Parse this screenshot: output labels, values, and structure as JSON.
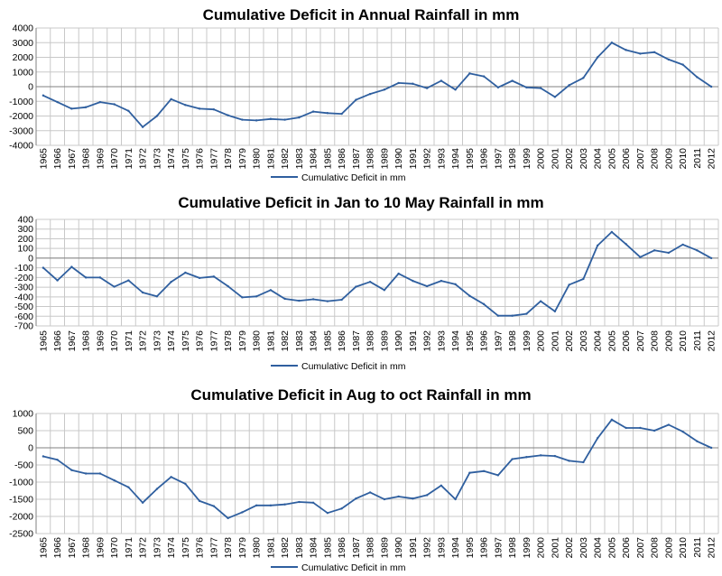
{
  "colors": {
    "series": "#2F5F9F"
  },
  "chart_data": [
    {
      "type": "line",
      "title": "Cumulative Deficit in Annual Rainfall in mm",
      "xlabel": "",
      "ylabel": "",
      "ylim": [
        -4000,
        4000
      ],
      "ytick_step": 1000,
      "grid": true,
      "legend_position": "bottom-center",
      "x": [
        "1965",
        "1966",
        "1967",
        "1968",
        "1969",
        "1970",
        "1971",
        "1972",
        "1973",
        "1974",
        "1975",
        "1976",
        "1977",
        "1978",
        "1979",
        "1980",
        "1981",
        "1982",
        "1983",
        "1984",
        "1985",
        "1986",
        "1987",
        "1988",
        "1989",
        "1990",
        "1991",
        "1992",
        "1993",
        "1994",
        "1995",
        "1996",
        "1997",
        "1998",
        "1999",
        "2000",
        "2001",
        "2002",
        "2003",
        "2004",
        "2005",
        "2006",
        "2007",
        "2008",
        "2009",
        "2010",
        "2011",
        "2012"
      ],
      "series": [
        {
          "name": "Cumulativc Deficit in mm",
          "values": [
            -600,
            -1050,
            -1500,
            -1400,
            -1050,
            -1200,
            -1650,
            -2750,
            -2000,
            -850,
            -1250,
            -1500,
            -1550,
            -1950,
            -2250,
            -2300,
            -2200,
            -2250,
            -2100,
            -1700,
            -1800,
            -1850,
            -900,
            -500,
            -200,
            250,
            200,
            -100,
            400,
            -200,
            900,
            700,
            -50,
            400,
            -50,
            -100,
            -700,
            100,
            600,
            2000,
            3000,
            2500,
            2250,
            2350,
            1850,
            1500,
            650,
            0
          ]
        }
      ]
    },
    {
      "type": "line",
      "title": "Cumulative Deficit in Jan to 10 May Rainfall in mm",
      "xlabel": "",
      "ylabel": "",
      "ylim": [
        -700,
        400
      ],
      "ytick_step": 100,
      "grid": true,
      "legend_position": "bottom-center",
      "x": [
        "1965",
        "1966",
        "1967",
        "1968",
        "1969",
        "1970",
        "1971",
        "1972",
        "1973",
        "1974",
        "1975",
        "1976",
        "1977",
        "1978",
        "1979",
        "1980",
        "1981",
        "1982",
        "1983",
        "1984",
        "1985",
        "1986",
        "1987",
        "1988",
        "1989",
        "1990",
        "1991",
        "1992",
        "1993",
        "1994",
        "1995",
        "1996",
        "1997",
        "1998",
        "1999",
        "2000",
        "2001",
        "2002",
        "2003",
        "2004",
        "2005",
        "2006",
        "2007",
        "2008",
        "2009",
        "2010",
        "2011",
        "2012"
      ],
      "series": [
        {
          "name": "Cumulativc Deficit in mm",
          "values": [
            -100,
            -230,
            -90,
            -200,
            -200,
            -295,
            -230,
            -355,
            -395,
            -245,
            -150,
            -205,
            -190,
            -290,
            -405,
            -395,
            -330,
            -420,
            -440,
            -425,
            -445,
            -430,
            -295,
            -245,
            -330,
            -160,
            -235,
            -290,
            -235,
            -270,
            -390,
            -475,
            -595,
            -595,
            -575,
            -445,
            -550,
            -275,
            -215,
            130,
            270,
            145,
            10,
            80,
            55,
            140,
            80,
            0
          ]
        }
      ]
    },
    {
      "type": "line",
      "title": "Cumulative Deficit in Aug to oct Rainfall in mm",
      "xlabel": "",
      "ylabel": "",
      "ylim": [
        -2500,
        1000
      ],
      "ytick_step": 500,
      "grid": true,
      "legend_position": "bottom-center",
      "x": [
        "1965",
        "1966",
        "1967",
        "1968",
        "1969",
        "1970",
        "1971",
        "1972",
        "1973",
        "1974",
        "1975",
        "1976",
        "1977",
        "1978",
        "1979",
        "1980",
        "1981",
        "1982",
        "1983",
        "1984",
        "1985",
        "1986",
        "1987",
        "1988",
        "1989",
        "1990",
        "1991",
        "1992",
        "1993",
        "1994",
        "1995",
        "1996",
        "1997",
        "1998",
        "1999",
        "2000",
        "2001",
        "2002",
        "2003",
        "2004",
        "2005",
        "2006",
        "2007",
        "2008",
        "2009",
        "2010",
        "2011",
        "2012"
      ],
      "series": [
        {
          "name": "Cumulativc Deficit in mm",
          "values": [
            -250,
            -350,
            -650,
            -750,
            -750,
            -950,
            -1150,
            -1600,
            -1200,
            -850,
            -1050,
            -1550,
            -1700,
            -2050,
            -1880,
            -1680,
            -1680,
            -1650,
            -1580,
            -1600,
            -1900,
            -1770,
            -1480,
            -1300,
            -1500,
            -1420,
            -1480,
            -1380,
            -1100,
            -1500,
            -730,
            -680,
            -800,
            -330,
            -270,
            -220,
            -240,
            -380,
            -420,
            280,
            820,
            580,
            580,
            500,
            670,
            470,
            190,
            0
          ]
        }
      ]
    }
  ]
}
